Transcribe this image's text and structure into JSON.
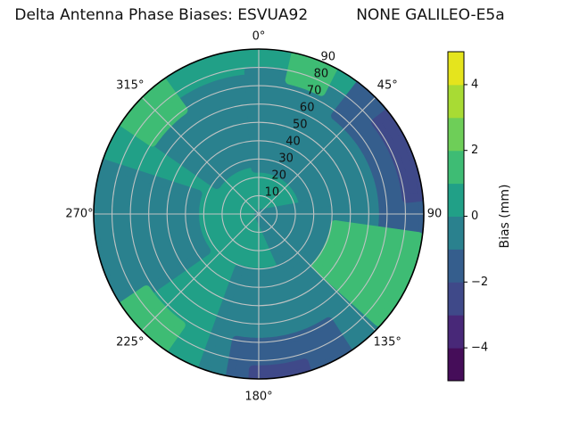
{
  "title": "Delta Antenna Phase Biases: ESVUA92          NONE GALILEO-E5a",
  "chart_data": {
    "type": "polar_contour",
    "description": "Filled contour polar plot of antenna phase bias vs azimuth (0-360 deg clockwise from top) and zenith angle (0-90, radial). Base fill is the 0 to 1 mm level; listed regions are other contour levels.",
    "angular_axis": {
      "direction": "clockwise-from-top",
      "tick_angles_deg": [
        0,
        45,
        90,
        135,
        180,
        225,
        270,
        315
      ],
      "tick_labels": [
        "0°",
        "45°",
        "90",
        "135°",
        "180°",
        "225°",
        "270°",
        "315°"
      ]
    },
    "radial_axis": {
      "ticks": [
        10,
        20,
        30,
        40,
        50,
        60,
        70,
        80,
        90
      ],
      "max": 90,
      "label_angle_deg": 22.5
    },
    "grid": {
      "on": true,
      "color": "#bfc3c3"
    },
    "colorbar": {
      "label": "Bias (mm)",
      "range": [
        -5,
        5
      ],
      "levels": [
        -5,
        -4,
        -3,
        -2,
        -1,
        0,
        1,
        2,
        3,
        4,
        5
      ],
      "tick_values": [
        4,
        2,
        0,
        -2,
        -4
      ],
      "tick_labels": [
        "4",
        "2",
        "0",
        "−2",
        "−4"
      ],
      "colors_bottom_to_top": [
        "#450d59",
        "#482878",
        "#3f4989",
        "#355e8d",
        "#2a818e",
        "#21a087",
        "#3ebc74",
        "#6ece58",
        "#a8db34",
        "#e5e41d"
      ]
    },
    "base_region": {
      "level_mm": "0 to 1",
      "color_index": 5
    },
    "regions": [
      {
        "name": "upper-left-inner-band",
        "level_mm": "-1 to 0",
        "color_index": 4,
        "az_deg": [
          305,
          368
        ],
        "r": [
          28,
          74
        ]
      },
      {
        "name": "top-to-right-inner",
        "level_mm": "-1 to 0",
        "color_index": 4,
        "az_deg": [
          356,
          455
        ],
        "r": [
          25,
          78
        ]
      },
      {
        "name": "center-southeast",
        "level_mm": "-1 to 0",
        "color_index": 4,
        "az_deg": [
          80,
          156
        ],
        "r": [
          0,
          50
        ]
      },
      {
        "name": "bottom-sector",
        "level_mm": "-1 to 0",
        "color_index": 4,
        "az_deg": [
          134,
          200
        ],
        "r": [
          32,
          90
        ]
      },
      {
        "name": "left-sector",
        "level_mm": "-1 to 0",
        "color_index": 4,
        "az_deg": [
          235,
          288
        ],
        "r": [
          35,
          90
        ]
      },
      {
        "name": "right-rim-band",
        "level_mm": "-2 to -1",
        "color_index": 3,
        "az_deg": [
          38,
          100
        ],
        "r": [
          68,
          90
        ]
      },
      {
        "name": "bottom-rim-band",
        "level_mm": "-2 to -1",
        "color_index": 3,
        "az_deg": [
          147,
          190
        ],
        "r": [
          70,
          90
        ]
      },
      {
        "name": "right-rim-core",
        "level_mm": "-3 to -2",
        "color_index": 2,
        "az_deg": [
          52,
          84
        ],
        "r": [
          81,
          90
        ]
      },
      {
        "name": "bottom-rim-core",
        "level_mm": "-3 to -2",
        "color_index": 2,
        "az_deg": [
          163,
          182
        ],
        "r": [
          85,
          90
        ]
      },
      {
        "name": "southeast-green-blob",
        "level_mm": "1 to 2",
        "color_index": 6,
        "az_deg": [
          98,
          132
        ],
        "r": [
          42,
          88
        ]
      },
      {
        "name": "top-rim-green-blob",
        "level_mm": "1 to 2",
        "color_index": 6,
        "az_deg": [
          13,
          27
        ],
        "r": [
          75,
          90
        ]
      },
      {
        "name": "northwest-rim-streak",
        "level_mm": "1 to 2",
        "color_index": 6,
        "az_deg": [
          304,
          324
        ],
        "r": [
          70,
          90
        ]
      },
      {
        "name": "southwest-rim-blob",
        "level_mm": "1 to 2",
        "color_index": 6,
        "az_deg": [
          215,
          236
        ],
        "r": [
          74,
          90
        ]
      }
    ]
  }
}
